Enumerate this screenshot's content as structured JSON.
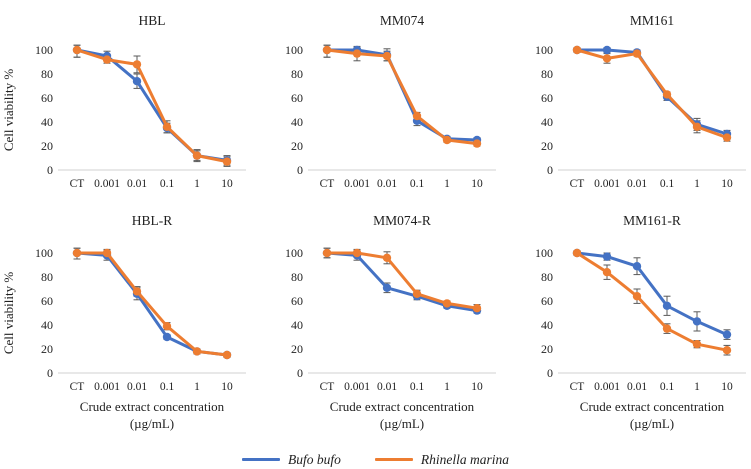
{
  "figure": {
    "ylabel": "Cell viability %",
    "xlabel_line1": "Crude extract concentration",
    "xlabel_line2": "(µg/mL)",
    "grid": false,
    "legend_position": "bottom"
  },
  "colors": {
    "series_blue": "#4472C4",
    "series_orange": "#ED7D31",
    "error_bar": "#595959",
    "axis_line": "#D9D9D9",
    "text": "#1f1f1f"
  },
  "legend": {
    "items": [
      {
        "label": "Bufo bufo",
        "color": "#4472C4"
      },
      {
        "label": "Rhinella marina",
        "color": "#ED7D31"
      }
    ]
  },
  "chart_data": [
    {
      "type": "line",
      "title": "HBL",
      "categories": [
        "CT",
        "0.001",
        "0.01",
        "0.1",
        "1",
        "10"
      ],
      "ylim": [
        0,
        100
      ],
      "yticks": [
        0,
        20,
        40,
        60,
        80,
        100
      ],
      "show_ylabel": true,
      "show_xlabel": false,
      "series": [
        {
          "name": "Bufo bufo",
          "color": "#4472C4",
          "values": [
            100,
            95,
            74,
            35,
            12,
            8
          ],
          "errors": [
            6,
            4,
            6,
            4,
            4,
            4
          ]
        },
        {
          "name": "Rhinella marina",
          "color": "#ED7D31",
          "values": [
            100,
            92,
            88,
            36,
            12,
            7
          ],
          "errors": [
            6,
            3,
            7,
            5,
            5,
            4
          ]
        }
      ]
    },
    {
      "type": "line",
      "title": "MM074",
      "categories": [
        "CT",
        "0.001",
        "0.01",
        "0.1",
        "1",
        "10"
      ],
      "ylim": [
        0,
        100
      ],
      "yticks": [
        0,
        20,
        40,
        60,
        80,
        100
      ],
      "show_ylabel": false,
      "show_xlabel": false,
      "series": [
        {
          "name": "Bufo bufo",
          "color": "#4472C4",
          "values": [
            100,
            100,
            96,
            41,
            26,
            25
          ],
          "errors": [
            6,
            2,
            5,
            4,
            2,
            2
          ]
        },
        {
          "name": "Rhinella marina",
          "color": "#ED7D31",
          "values": [
            100,
            97,
            95,
            45,
            25,
            22
          ],
          "errors": [
            6,
            6,
            4,
            3,
            2,
            2
          ]
        }
      ]
    },
    {
      "type": "line",
      "title": "MM161",
      "categories": [
        "CT",
        "0.001",
        "0.01",
        "0.1",
        "1",
        "10"
      ],
      "ylim": [
        0,
        100
      ],
      "yticks": [
        0,
        20,
        40,
        60,
        80,
        100
      ],
      "show_ylabel": false,
      "show_xlabel": false,
      "series": [
        {
          "name": "Bufo bufo",
          "color": "#4472C4",
          "values": [
            100,
            100,
            98,
            61,
            38,
            30
          ],
          "errors": [
            2,
            2,
            2,
            3,
            5,
            3
          ]
        },
        {
          "name": "Rhinella marina",
          "color": "#ED7D31",
          "values": [
            100,
            93,
            97,
            63,
            36,
            27
          ],
          "errors": [
            2,
            4,
            2,
            2,
            5,
            3
          ]
        }
      ]
    },
    {
      "type": "line",
      "title": "HBL-R",
      "categories": [
        "CT",
        "0.001",
        "0.01",
        "0.1",
        "1",
        "10"
      ],
      "ylim": [
        0,
        100
      ],
      "yticks": [
        0,
        20,
        40,
        60,
        80,
        100
      ],
      "show_ylabel": true,
      "show_xlabel": true,
      "series": [
        {
          "name": "Bufo bufo",
          "color": "#4472C4",
          "values": [
            100,
            98,
            66,
            30,
            18,
            15
          ],
          "errors": [
            5,
            4,
            5,
            2,
            2,
            2
          ]
        },
        {
          "name": "Rhinella marina",
          "color": "#ED7D31",
          "values": [
            100,
            100,
            68,
            39,
            18,
            15
          ],
          "errors": [
            5,
            3,
            4,
            3,
            2,
            2
          ]
        }
      ]
    },
    {
      "type": "line",
      "title": "MM074-R",
      "categories": [
        "CT",
        "0.001",
        "0.01",
        "0.1",
        "1",
        "10"
      ],
      "ylim": [
        0,
        100
      ],
      "yticks": [
        0,
        20,
        40,
        60,
        80,
        100
      ],
      "show_ylabel": false,
      "show_xlabel": true,
      "series": [
        {
          "name": "Bufo bufo",
          "color": "#4472C4",
          "values": [
            100,
            98,
            71,
            64,
            56,
            52
          ],
          "errors": [
            4,
            4,
            4,
            3,
            2,
            2
          ]
        },
        {
          "name": "Rhinella marina",
          "color": "#ED7D31",
          "values": [
            100,
            100,
            96,
            66,
            58,
            54
          ],
          "errors": [
            4,
            3,
            5,
            3,
            2,
            3
          ]
        }
      ]
    },
    {
      "type": "line",
      "title": "MM161-R",
      "categories": [
        "CT",
        "0.001",
        "0.01",
        "0.1",
        "1",
        "10"
      ],
      "ylim": [
        0,
        100
      ],
      "yticks": [
        0,
        20,
        40,
        60,
        80,
        100
      ],
      "show_ylabel": false,
      "show_xlabel": true,
      "series": [
        {
          "name": "Bufo bufo",
          "color": "#4472C4",
          "values": [
            100,
            97,
            89,
            56,
            43,
            32
          ],
          "errors": [
            2,
            3,
            7,
            8,
            8,
            4
          ]
        },
        {
          "name": "Rhinella marina",
          "color": "#ED7D31",
          "values": [
            100,
            84,
            64,
            37,
            24,
            19
          ],
          "errors": [
            2,
            6,
            6,
            4,
            3,
            4
          ]
        }
      ]
    }
  ]
}
